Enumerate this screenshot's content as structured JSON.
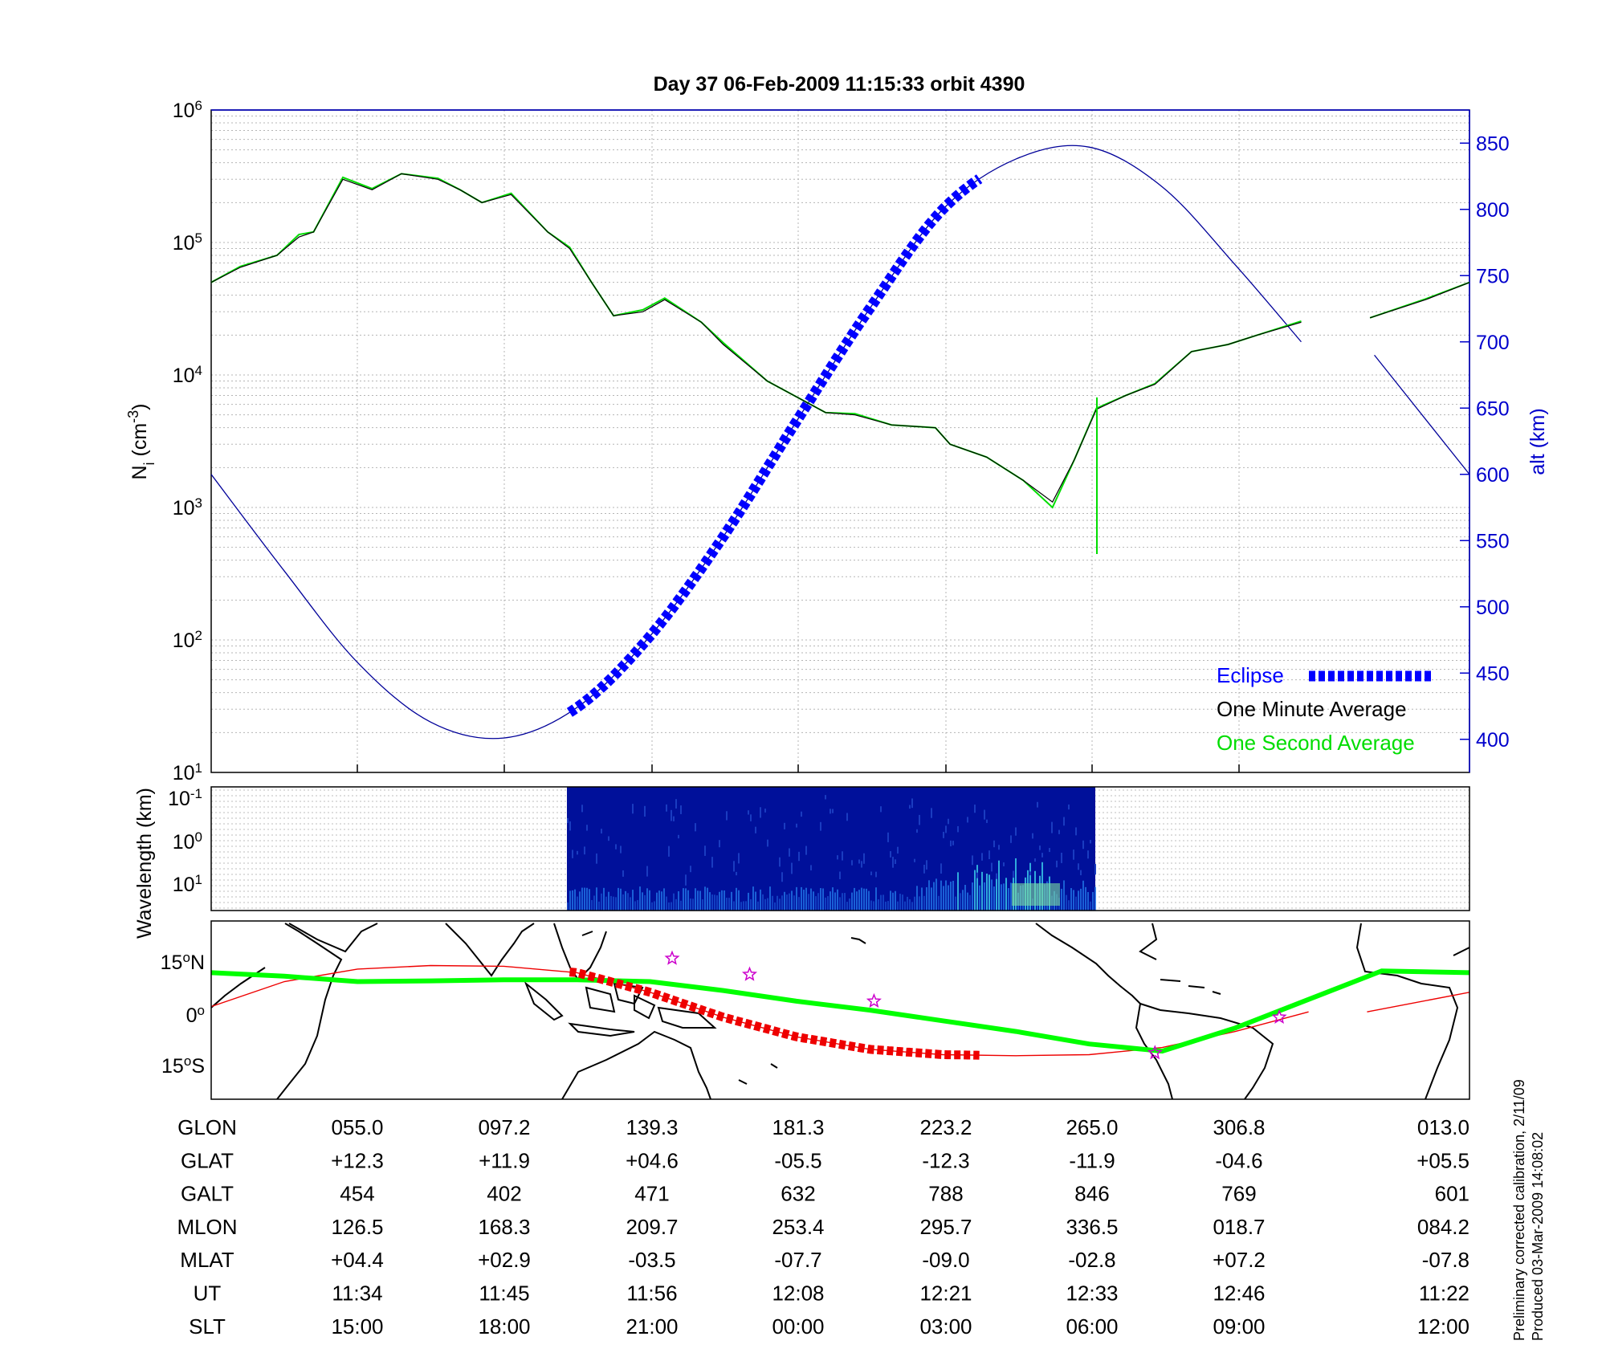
{
  "title": "Day 37  06-Feb-2009 11:15:33   orbit 4390",
  "footer": {
    "line1": "Preliminary corrected calibration, 2/11/09",
    "line2": "Produced 03-Mar-2009 14:08:02"
  },
  "colors": {
    "eclipse": "#0000ff",
    "one_minute": "#000000",
    "one_second": "#00dd00",
    "altitude": "#000099",
    "right_axis": "#0000cc",
    "track_green": "#00ff00",
    "track_red": "#ee0000",
    "stars": "#cc00cc"
  },
  "chart_data": [
    {
      "type": "line",
      "panel": "ion-density",
      "ylabel_left": "N_i (cm^-3)",
      "ylabel_right": "alt (km)",
      "yscale_left": "log",
      "ylim_left": [
        10,
        1000000
      ],
      "ylim_right": [
        375,
        875
      ],
      "left_ticks": [
        {
          "base": "10",
          "exp": "1"
        },
        {
          "base": "10",
          "exp": "2"
        },
        {
          "base": "10",
          "exp": "3"
        },
        {
          "base": "10",
          "exp": "4"
        },
        {
          "base": "10",
          "exp": "5"
        },
        {
          "base": "10",
          "exp": "6"
        }
      ],
      "right_ticks": [
        "400",
        "450",
        "500",
        "550",
        "600",
        "650",
        "700",
        "750",
        "800",
        "850"
      ],
      "xlim": [
        0,
        8.6
      ],
      "grid": true,
      "legend": {
        "placement": "bottom-right",
        "entries": [
          "Eclipse",
          "One Minute Average",
          "One Second Average"
        ]
      },
      "series": [
        {
          "name": "One Minute Average",
          "x": [
            0,
            0.2,
            0.45,
            0.6,
            0.7,
            0.9,
            1.1,
            1.3,
            1.55,
            1.7,
            1.85,
            2.05,
            2.3,
            2.45,
            2.6,
            2.75,
            2.95,
            3.1,
            3.35,
            3.5,
            3.8,
            4.2,
            4.4,
            4.65,
            4.95,
            5.05,
            5.3,
            5.55,
            5.75,
            5.9,
            6.05,
            6.25,
            6.45,
            6.7,
            6.95,
            7.15,
            7.45
          ],
          "y": [
            50000,
            65000,
            80000,
            110000,
            120000,
            300000,
            250000,
            330000,
            300000,
            250000,
            200000,
            230000,
            120000,
            90000,
            50000,
            28000,
            30000,
            37000,
            25000,
            17000,
            9000,
            5200,
            5000,
            4200,
            4000,
            3000,
            2400,
            1600,
            1100,
            2300,
            5500,
            7000,
            8500,
            15000,
            17000,
            20000,
            25000
          ]
        },
        {
          "name": "One Second Average",
          "x": [
            0,
            0.2,
            0.45,
            0.6,
            0.7,
            0.9,
            1.1,
            1.3,
            1.55,
            1.7,
            1.85,
            2.05,
            2.3,
            2.45,
            2.6,
            2.75,
            2.95,
            3.1,
            3.35,
            3.5,
            3.8,
            4.2,
            4.4,
            4.65,
            4.95,
            5.05,
            5.3,
            5.55,
            5.75,
            5.9,
            6.05,
            6.25,
            6.45,
            6.7,
            6.95,
            7.15,
            7.45
          ],
          "y": [
            50000,
            66000,
            80000,
            115000,
            120000,
            310000,
            255000,
            330000,
            305000,
            250000,
            200000,
            235000,
            120000,
            92000,
            50000,
            28000,
            31000,
            38000,
            25000,
            17500,
            9000,
            5200,
            5100,
            4200,
            4000,
            3000,
            2400,
            1600,
            1000,
            2300,
            5600,
            7000,
            8600,
            15000,
            17000,
            20000,
            25500
          ]
        },
        {
          "name": "alt (km)",
          "x": [
            0,
            0.5,
            1.0,
            1.5,
            2.0,
            2.5,
            3.0,
            3.5,
            4.0,
            4.5,
            5.0,
            5.5,
            6.0,
            6.5,
            7.0,
            7.45
          ],
          "y": [
            600,
            527,
            458,
            413,
            401,
            424,
            478,
            553,
            640,
            725,
            800,
            838,
            847,
            817,
            758,
            700
          ]
        }
      ],
      "eclipse_x_range": [
        2.45,
        5.25
      ]
    },
    {
      "type": "heatmap",
      "panel": "spectrogram",
      "ylabel": "Wavelength (km)",
      "y_ticks": [
        {
          "base": "10",
          "exp": "-1"
        },
        {
          "base": "10",
          "exp": "0"
        },
        {
          "base": "10",
          "exp": "1"
        }
      ],
      "x_data_range": [
        2.45,
        6.05
      ]
    },
    {
      "type": "line",
      "panel": "ground-track",
      "y_ticks": [
        "15",
        "0",
        "15"
      ],
      "y_tick_suffix": [
        "N",
        "",
        "S"
      ],
      "ylim": [
        -25,
        25
      ],
      "series": [
        {
          "name": "magnetic track",
          "x": [
            0,
            0.5,
            1.0,
            1.5,
            2.0,
            2.5,
            3.0,
            3.5,
            4.0,
            4.5,
            5.0,
            5.5,
            6.0,
            6.5,
            7.0,
            7.5,
            8.0,
            8.6
          ],
          "y": [
            10.5,
            9.5,
            8.0,
            8.2,
            8.5,
            8.5,
            8.0,
            5.5,
            2.5,
            0,
            -3.0,
            -6.0,
            -9.5,
            -11.5,
            -5.0,
            3.0,
            11.0,
            10.5
          ]
        },
        {
          "name": "geographic track",
          "x": [
            0,
            0.5,
            1.0,
            1.5,
            2.0,
            2.5,
            3.0,
            3.5,
            4.0,
            4.5,
            5.0,
            5.5,
            6.0,
            6.5,
            7.0,
            7.5
          ],
          "y": [
            1.0,
            8.0,
            11.5,
            12.5,
            12.3,
            10.5,
            5.0,
            -2.0,
            -7.5,
            -11.0,
            -12.5,
            -12.8,
            -12.5,
            -10.5,
            -6.0,
            -0.5
          ]
        }
      ],
      "stars": [
        {
          "x": 3.15,
          "y": 14.5
        },
        {
          "x": 3.68,
          "y": 10.0
        },
        {
          "x": 4.53,
          "y": 2.5
        },
        {
          "x": 6.45,
          "y": -12.0
        },
        {
          "x": 7.3,
          "y": -2.0
        }
      ]
    },
    {
      "type": "table",
      "panel": "orbit-parameters",
      "rows": [
        {
          "label": "GLON",
          "values": [
            "055.0",
            "097.2",
            "139.3",
            "181.3",
            "223.2",
            "265.0",
            "306.8",
            "013.0"
          ]
        },
        {
          "label": "GLAT",
          "values": [
            "+12.3",
            "+11.9",
            "+04.6",
            "-05.5",
            "-12.3",
            "-11.9",
            "-04.6",
            "+05.5"
          ]
        },
        {
          "label": "GALT",
          "values": [
            "454",
            "402",
            "471",
            "632",
            "788",
            "846",
            "769",
            "601"
          ]
        },
        {
          "label": "MLON",
          "values": [
            "126.5",
            "168.3",
            "209.7",
            "253.4",
            "295.7",
            "336.5",
            "018.7",
            "084.2"
          ]
        },
        {
          "label": "MLAT",
          "values": [
            "+04.4",
            "+02.9",
            "-03.5",
            "-07.7",
            "-09.0",
            "-02.8",
            "+07.2",
            "-07.8"
          ]
        },
        {
          "label": "UT",
          "values": [
            "11:34",
            "11:45",
            "11:56",
            "12:08",
            "12:21",
            "12:33",
            "12:46",
            "11:22"
          ]
        },
        {
          "label": "SLT",
          "values": [
            "15:00",
            "18:00",
            "21:00",
            "00:00",
            "03:00",
            "06:00",
            "09:00",
            "12:00"
          ]
        }
      ]
    }
  ]
}
